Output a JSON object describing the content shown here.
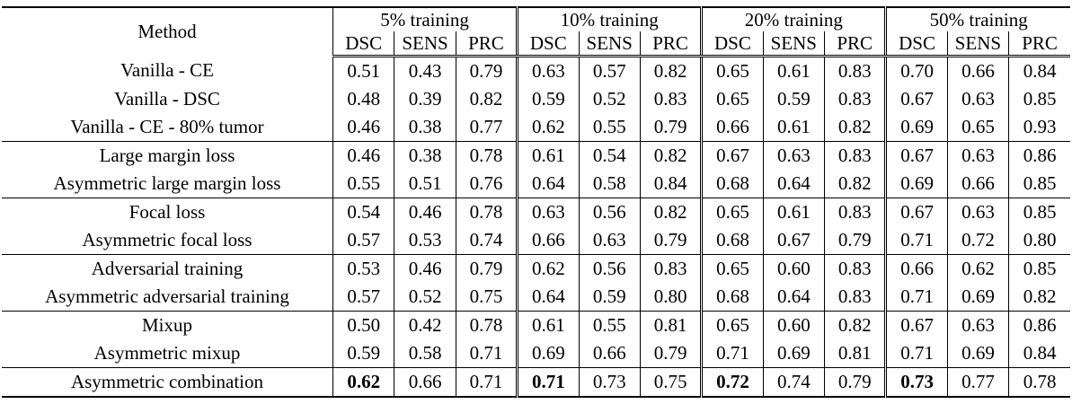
{
  "table": {
    "method_header": "Method",
    "groups": [
      {
        "label": "5% training"
      },
      {
        "label": "10% training"
      },
      {
        "label": "20% training"
      },
      {
        "label": "50% training"
      }
    ],
    "metric_headers": [
      "DSC",
      "SENS",
      "PRC"
    ],
    "colors": {
      "text": "#000000",
      "background": "#ffffff",
      "rule": "#000000"
    },
    "row_groups": [
      {
        "rows": [
          {
            "method": "Vanilla - CE",
            "values": [
              "0.51",
              "0.43",
              "0.79",
              "0.63",
              "0.57",
              "0.82",
              "0.65",
              "0.61",
              "0.83",
              "0.70",
              "0.66",
              "0.84"
            ]
          },
          {
            "method": "Vanilla - DSC",
            "values": [
              "0.48",
              "0.39",
              "0.82",
              "0.59",
              "0.52",
              "0.83",
              "0.65",
              "0.59",
              "0.83",
              "0.67",
              "0.63",
              "0.85"
            ]
          },
          {
            "method": "Vanilla - CE - 80% tumor",
            "values": [
              "0.46",
              "0.38",
              "0.77",
              "0.62",
              "0.55",
              "0.79",
              "0.66",
              "0.61",
              "0.82",
              "0.69",
              "0.65",
              "0.93"
            ]
          }
        ]
      },
      {
        "rows": [
          {
            "method": "Large margin loss",
            "values": [
              "0.46",
              "0.38",
              "0.78",
              "0.61",
              "0.54",
              "0.82",
              "0.67",
              "0.63",
              "0.83",
              "0.67",
              "0.63",
              "0.86"
            ]
          },
          {
            "method": "Asymmetric large margin loss",
            "values": [
              "0.55",
              "0.51",
              "0.76",
              "0.64",
              "0.58",
              "0.84",
              "0.68",
              "0.64",
              "0.82",
              "0.69",
              "0.66",
              "0.85"
            ]
          }
        ]
      },
      {
        "rows": [
          {
            "method": "Focal loss",
            "values": [
              "0.54",
              "0.46",
              "0.78",
              "0.63",
              "0.56",
              "0.82",
              "0.65",
              "0.61",
              "0.83",
              "0.67",
              "0.63",
              "0.85"
            ]
          },
          {
            "method": "Asymmetric focal loss",
            "values": [
              "0.57",
              "0.53",
              "0.74",
              "0.66",
              "0.63",
              "0.79",
              "0.68",
              "0.67",
              "0.79",
              "0.71",
              "0.72",
              "0.80"
            ]
          }
        ]
      },
      {
        "rows": [
          {
            "method": "Adversarial training",
            "values": [
              "0.53",
              "0.46",
              "0.79",
              "0.62",
              "0.56",
              "0.83",
              "0.65",
              "0.60",
              "0.83",
              "0.66",
              "0.62",
              "0.85"
            ]
          },
          {
            "method": "Asymmetric adversarial training",
            "values": [
              "0.57",
              "0.52",
              "0.75",
              "0.64",
              "0.59",
              "0.80",
              "0.68",
              "0.64",
              "0.83",
              "0.71",
              "0.69",
              "0.82"
            ]
          }
        ]
      },
      {
        "rows": [
          {
            "method": "Mixup",
            "values": [
              "0.50",
              "0.42",
              "0.78",
              "0.61",
              "0.55",
              "0.81",
              "0.65",
              "0.60",
              "0.82",
              "0.67",
              "0.63",
              "0.86"
            ]
          },
          {
            "method": "Asymmetric mixup",
            "values": [
              "0.59",
              "0.58",
              "0.71",
              "0.69",
              "0.66",
              "0.79",
              "0.71",
              "0.69",
              "0.81",
              "0.71",
              "0.69",
              "0.84"
            ]
          }
        ]
      },
      {
        "rows": [
          {
            "method": "Asymmetric combination",
            "values": [
              "0.62",
              "0.66",
              "0.71",
              "0.71",
              "0.73",
              "0.75",
              "0.72",
              "0.74",
              "0.79",
              "0.73",
              "0.77",
              "0.78"
            ],
            "bold": [
              0,
              3,
              6,
              9
            ]
          }
        ]
      }
    ]
  }
}
